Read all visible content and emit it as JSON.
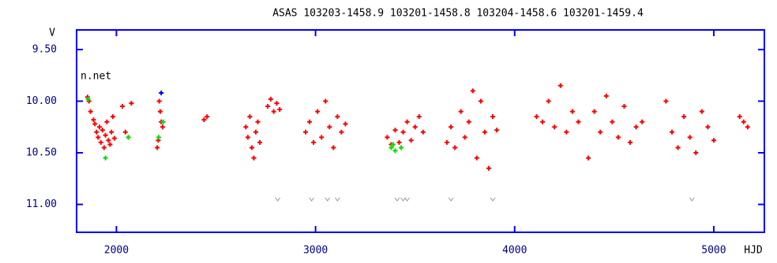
{
  "chart_data": {
    "type": "scatter",
    "title": "ASAS 103203-1458.9 103201-1458.8 103204-1458.6 103201-1459.4",
    "x_label": "HJD",
    "y_label": "V",
    "annotation": "n.net",
    "xlim": [
      1800,
      5254
    ],
    "ylim": [
      9.31,
      11.27
    ],
    "y_inverted": true,
    "xticks": [
      2000,
      3000,
      4000,
      5000
    ],
    "yticks": [
      {
        "value": 9.5,
        "label": "9.50"
      },
      {
        "value": 10.0,
        "label": "10.00"
      },
      {
        "value": 10.5,
        "label": "10.50"
      },
      {
        "value": 11.0,
        "label": "11.00"
      }
    ],
    "frame_color": "#0000ff",
    "series": [
      {
        "color": "#ff0000",
        "marker": "plus",
        "x": [
          1855,
          1862,
          1870,
          1885,
          1892,
          1900,
          1908,
          1915,
          1922,
          1930,
          1938,
          1945,
          1952,
          1960,
          1968,
          1975,
          1982,
          1990,
          2030,
          2045,
          2060,
          2075,
          2205,
          2210,
          2215,
          2220,
          2225,
          2232,
          2440,
          2455,
          2650,
          2660,
          2670,
          2680,
          2690,
          2700,
          2710,
          2720,
          2760,
          2775,
          2790,
          2805,
          2820,
          2950,
          2970,
          2990,
          3010,
          3030,
          3050,
          3070,
          3090,
          3110,
          3130,
          3150,
          3360,
          3380,
          3400,
          3420,
          3440,
          3460,
          3480,
          3500,
          3520,
          3540,
          3660,
          3680,
          3700,
          3730,
          3750,
          3770,
          3790,
          3810,
          3830,
          3850,
          3870,
          3890,
          3910,
          4110,
          4140,
          4170,
          4200,
          4230,
          4260,
          4290,
          4320,
          4370,
          4400,
          4430,
          4460,
          4490,
          4520,
          4550,
          4580,
          4610,
          4640,
          4760,
          4790,
          4820,
          4850,
          4880,
          4910,
          4940,
          4970,
          5000,
          5130,
          5150,
          5170
        ],
        "values": [
          9.96,
          10.0,
          10.1,
          10.18,
          10.22,
          10.3,
          10.35,
          10.25,
          10.4,
          10.28,
          10.45,
          10.33,
          10.2,
          10.38,
          10.42,
          10.3,
          10.15,
          10.36,
          10.05,
          10.3,
          10.35,
          10.02,
          10.45,
          10.38,
          10.0,
          10.1,
          10.2,
          10.25,
          10.18,
          10.15,
          10.25,
          10.35,
          10.15,
          10.45,
          10.55,
          10.3,
          10.2,
          10.4,
          10.05,
          9.98,
          10.1,
          10.02,
          10.08,
          10.3,
          10.2,
          10.4,
          10.1,
          10.35,
          10.0,
          10.25,
          10.45,
          10.15,
          10.3,
          10.22,
          10.35,
          10.42,
          10.28,
          10.4,
          10.3,
          10.2,
          10.38,
          10.25,
          10.15,
          10.3,
          10.4,
          10.25,
          10.45,
          10.1,
          10.35,
          10.2,
          9.9,
          10.55,
          10.0,
          10.3,
          10.65,
          10.15,
          10.28,
          10.15,
          10.2,
          10.0,
          10.25,
          9.85,
          10.3,
          10.1,
          10.2,
          10.55,
          10.1,
          10.3,
          9.95,
          10.2,
          10.35,
          10.05,
          10.4,
          10.25,
          10.2,
          10.0,
          10.3,
          10.45,
          10.15,
          10.35,
          10.5,
          10.1,
          10.25,
          10.38,
          10.15,
          10.2,
          10.25
        ]
      },
      {
        "color": "#00dd00",
        "marker": "plus",
        "x": [
          1858,
          1945,
          2060,
          2212,
          2235,
          3380,
          3390,
          3400,
          3430
        ],
        "values": [
          9.98,
          10.55,
          10.35,
          10.35,
          10.2,
          10.45,
          10.42,
          10.48,
          10.45
        ]
      },
      {
        "color": "#0000ff",
        "marker": "plus",
        "x": [
          2225
        ],
        "values": [
          9.92
        ]
      },
      {
        "color": "#999999",
        "marker": "v",
        "x": [
          2810,
          2980,
          3060,
          3110,
          3410,
          3440,
          3460,
          3680,
          3890,
          4890
        ],
        "values": [
          10.95,
          10.95,
          10.95,
          10.95,
          10.95,
          10.95,
          10.95,
          10.95,
          10.95,
          10.95
        ]
      }
    ]
  }
}
